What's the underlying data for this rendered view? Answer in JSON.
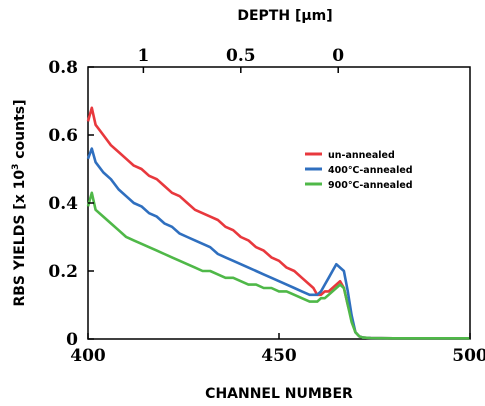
{
  "chart_data": {
    "type": "line",
    "title": "",
    "xlabel": "CHANNEL NUMBER",
    "ylabel_main": "RBS YIELDS [x 10",
    "ylabel_sup": "3",
    "ylabel_end": " counts]",
    "top_xlabel": "DEPTH [μm]",
    "xlim": [
      400,
      500
    ],
    "ylim": [
      0,
      0.8
    ],
    "x_ticks": [
      400,
      450,
      500
    ],
    "x_tick_labels": [
      "400",
      "450",
      "500"
    ],
    "y_ticks": [
      0,
      0.2,
      0.4,
      0.6,
      0.8
    ],
    "y_tick_labels": [
      "0",
      "0.2",
      "0.4",
      "0.6",
      "0.8"
    ],
    "top_ticks": [
      {
        "label": "1",
        "channel": 414.5
      },
      {
        "label": "0.5",
        "channel": 440
      },
      {
        "label": "0",
        "channel": 465.5
      }
    ],
    "legend_position": "right",
    "series": [
      {
        "name": "un-annealed",
        "color": "#e8383d",
        "x": [
          400,
          401,
          402,
          404,
          406,
          408,
          410,
          412,
          414,
          416,
          418,
          420,
          422,
          424,
          426,
          428,
          430,
          432,
          434,
          436,
          438,
          440,
          442,
          444,
          446,
          448,
          450,
          452,
          454,
          456,
          458,
          459,
          460,
          461,
          462,
          463,
          464,
          465,
          466,
          467,
          468,
          469,
          470,
          471,
          472,
          474,
          480,
          490,
          500
        ],
        "y": [
          0.64,
          0.68,
          0.63,
          0.6,
          0.57,
          0.55,
          0.53,
          0.51,
          0.5,
          0.48,
          0.47,
          0.45,
          0.43,
          0.42,
          0.4,
          0.38,
          0.37,
          0.36,
          0.35,
          0.33,
          0.32,
          0.3,
          0.29,
          0.27,
          0.26,
          0.24,
          0.23,
          0.21,
          0.2,
          0.18,
          0.16,
          0.15,
          0.13,
          0.13,
          0.14,
          0.14,
          0.15,
          0.16,
          0.17,
          0.15,
          0.1,
          0.06,
          0.02,
          0.008,
          0.004,
          0.003,
          0.002,
          0.002,
          0.002
        ]
      },
      {
        "name": "400℃-annealed",
        "color": "#2f6fbf",
        "x": [
          400,
          401,
          402,
          404,
          406,
          408,
          410,
          412,
          414,
          416,
          418,
          420,
          422,
          424,
          426,
          428,
          430,
          432,
          434,
          436,
          438,
          440,
          442,
          444,
          446,
          448,
          450,
          452,
          454,
          456,
          458,
          459,
          460,
          461,
          462,
          463,
          464,
          465,
          466,
          467,
          468,
          469,
          470,
          471,
          472,
          474,
          480,
          490,
          500
        ],
        "y": [
          0.53,
          0.56,
          0.52,
          0.49,
          0.47,
          0.44,
          0.42,
          0.4,
          0.39,
          0.37,
          0.36,
          0.34,
          0.33,
          0.31,
          0.3,
          0.29,
          0.28,
          0.27,
          0.25,
          0.24,
          0.23,
          0.22,
          0.21,
          0.2,
          0.19,
          0.18,
          0.17,
          0.16,
          0.15,
          0.14,
          0.13,
          0.13,
          0.13,
          0.14,
          0.16,
          0.18,
          0.2,
          0.22,
          0.21,
          0.2,
          0.14,
          0.07,
          0.02,
          0.008,
          0.004,
          0.003,
          0.002,
          0.002,
          0.002
        ]
      },
      {
        "name": "900℃-annealed",
        "color": "#4fb848",
        "x": [
          400,
          401,
          402,
          404,
          406,
          408,
          410,
          412,
          414,
          416,
          418,
          420,
          422,
          424,
          426,
          428,
          430,
          432,
          434,
          436,
          438,
          440,
          442,
          444,
          446,
          448,
          450,
          452,
          454,
          456,
          458,
          459,
          460,
          461,
          462,
          463,
          464,
          465,
          466,
          467,
          468,
          469,
          470,
          471,
          472,
          474,
          480,
          490,
          500
        ],
        "y": [
          0.39,
          0.43,
          0.38,
          0.36,
          0.34,
          0.32,
          0.3,
          0.29,
          0.28,
          0.27,
          0.26,
          0.25,
          0.24,
          0.23,
          0.22,
          0.21,
          0.2,
          0.2,
          0.19,
          0.18,
          0.18,
          0.17,
          0.16,
          0.16,
          0.15,
          0.15,
          0.14,
          0.14,
          0.13,
          0.12,
          0.11,
          0.11,
          0.11,
          0.12,
          0.12,
          0.13,
          0.14,
          0.15,
          0.16,
          0.15,
          0.1,
          0.05,
          0.02,
          0.008,
          0.004,
          0.003,
          0.002,
          0.002,
          0.002
        ]
      }
    ]
  }
}
